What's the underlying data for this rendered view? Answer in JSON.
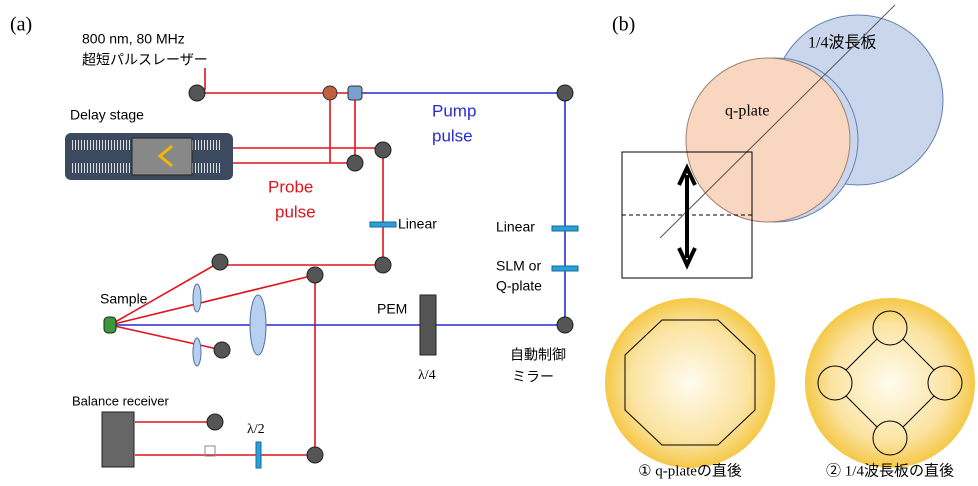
{
  "panel_a": {
    "label": "(a)",
    "laser": [
      "800 nm, 80 MHz",
      "超短パルスレーザー"
    ],
    "delay_stage": "Delay stage",
    "pump": [
      "Pump",
      "pulse"
    ],
    "probe": [
      "Probe",
      "pulse"
    ],
    "linear_probe": "Linear",
    "linear_pump": "Linear",
    "slm": [
      "SLM or",
      "Q-plate"
    ],
    "sample": "Sample",
    "pem": "PEM",
    "quarter_wave": "λ/4",
    "auto_mirror": [
      "自動制御",
      "ミラー"
    ],
    "balance_receiver": "Balance receiver",
    "half_wave": "λ/2"
  },
  "panel_b": {
    "label": "(b)",
    "quarter_plate": "1/4波長板",
    "q_plate": "q-plate",
    "captions": [
      "① q-plateの直後",
      "② 1/4波長板の直後"
    ]
  }
}
